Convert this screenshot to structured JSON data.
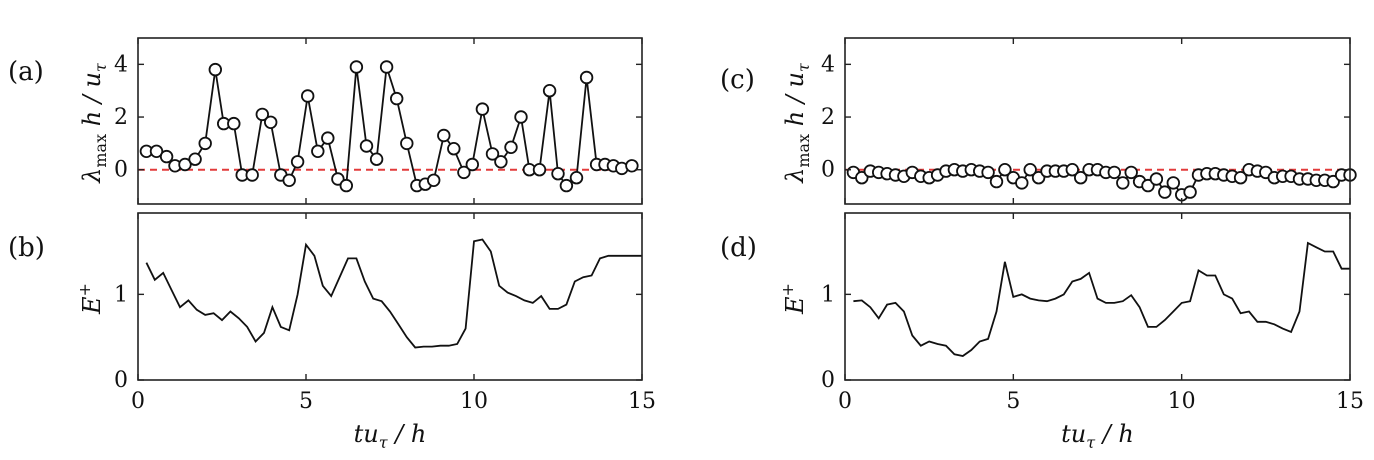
{
  "chart_data": [
    {
      "id": "a",
      "type": "line",
      "panel_label": "(a)",
      "ylabel": "λ_max h / u_τ",
      "xlim": [
        0,
        15
      ],
      "ylim": [
        -1.3,
        5
      ],
      "yticks": [
        "0",
        "2",
        "4"
      ],
      "ytick_values": [
        0,
        2,
        4
      ],
      "xtick_labels": false,
      "zero_line_color": "#e23b3b",
      "series": [
        {
          "name": "lambda_max",
          "markers": "circle",
          "x": [
            0.25,
            0.55,
            0.85,
            1.1,
            1.4,
            1.7,
            2.0,
            2.3,
            2.55,
            2.85,
            3.1,
            3.4,
            3.7,
            3.95,
            4.25,
            4.5,
            4.75,
            5.05,
            5.35,
            5.65,
            5.95,
            6.2,
            6.5,
            6.8,
            7.1,
            7.4,
            7.7,
            8.0,
            8.3,
            8.55,
            8.8,
            9.1,
            9.4,
            9.7,
            9.95,
            10.25,
            10.55,
            10.8,
            11.1,
            11.4,
            11.65,
            11.95,
            12.25,
            12.5,
            12.75,
            13.05,
            13.35,
            13.65,
            13.9,
            14.15,
            14.4,
            14.7
          ],
          "y": [
            0.7,
            0.7,
            0.5,
            0.15,
            0.2,
            0.4,
            1.0,
            3.8,
            1.75,
            1.75,
            -0.2,
            -0.2,
            2.1,
            1.8,
            -0.2,
            -0.4,
            0.3,
            2.8,
            0.7,
            1.2,
            -0.35,
            -0.6,
            3.9,
            0.9,
            0.4,
            3.9,
            2.7,
            1.0,
            -0.6,
            -0.55,
            -0.4,
            1.3,
            0.8,
            -0.1,
            0.2,
            2.3,
            0.6,
            0.3,
            0.85,
            2.0,
            0.0,
            0.0,
            3.0,
            -0.15,
            -0.6,
            -0.3,
            3.5,
            0.2,
            0.2,
            0.15,
            0.05,
            0.15
          ]
        }
      ]
    },
    {
      "id": "b",
      "type": "line",
      "panel_label": "(b)",
      "ylabel": "E^+",
      "xlabel": "tu_τ / h",
      "xlim": [
        0,
        15
      ],
      "ylim": [
        0,
        1.95
      ],
      "yticks": [
        "0",
        "1"
      ],
      "ytick_values": [
        0,
        1
      ],
      "xticks": [
        "0",
        "5",
        "10",
        "15"
      ],
      "xtick_values": [
        0,
        5,
        10,
        15
      ],
      "series": [
        {
          "name": "E+",
          "x": [
            0.25,
            0.5,
            0.75,
            1.0,
            1.25,
            1.5,
            1.75,
            2.0,
            2.25,
            2.5,
            2.75,
            3.0,
            3.25,
            3.5,
            3.75,
            4.0,
            4.25,
            4.5,
            4.75,
            5.0,
            5.25,
            5.5,
            5.75,
            6.0,
            6.25,
            6.5,
            6.75,
            7.0,
            7.25,
            7.5,
            7.75,
            8.0,
            8.25,
            8.5,
            8.75,
            9.0,
            9.25,
            9.5,
            9.75,
            10.0,
            10.25,
            10.5,
            10.75,
            11.0,
            11.25,
            11.5,
            11.75,
            12.0,
            12.25,
            12.5,
            12.75,
            13.0,
            13.25,
            13.5,
            13.75,
            14.0,
            14.25,
            14.5,
            14.75,
            15.0
          ],
          "y": [
            1.37,
            1.17,
            1.25,
            1.05,
            0.85,
            0.93,
            0.82,
            0.76,
            0.78,
            0.7,
            0.8,
            0.72,
            0.62,
            0.45,
            0.55,
            0.85,
            0.62,
            0.58,
            1.0,
            1.58,
            1.45,
            1.1,
            0.98,
            1.2,
            1.42,
            1.42,
            1.15,
            0.95,
            0.92,
            0.8,
            0.65,
            0.5,
            0.38,
            0.39,
            0.39,
            0.4,
            0.4,
            0.42,
            0.6,
            1.62,
            1.64,
            1.5,
            1.1,
            1.02,
            0.98,
            0.93,
            0.9,
            0.98,
            0.83,
            0.83,
            0.88,
            1.15,
            1.2,
            1.22,
            1.42,
            1.45,
            1.45,
            1.45,
            1.45,
            1.45
          ]
        }
      ]
    },
    {
      "id": "c",
      "type": "line",
      "panel_label": "(c)",
      "ylabel": "λ_max h / u_τ",
      "xlim": [
        0,
        15
      ],
      "ylim": [
        -1.3,
        5
      ],
      "yticks": [
        "0",
        "2",
        "4"
      ],
      "ytick_values": [
        0,
        2,
        4
      ],
      "xtick_labels": false,
      "zero_line_color": "#e23b3b",
      "series": [
        {
          "name": "lambda_max",
          "markers": "circle",
          "x": [
            0.25,
            0.5,
            0.75,
            1.0,
            1.25,
            1.5,
            1.75,
            2.0,
            2.25,
            2.5,
            2.75,
            3.0,
            3.25,
            3.5,
            3.75,
            4.0,
            4.25,
            4.5,
            4.75,
            5.0,
            5.25,
            5.5,
            5.75,
            6.0,
            6.25,
            6.5,
            6.75,
            7.0,
            7.25,
            7.5,
            7.75,
            8.0,
            8.25,
            8.5,
            8.75,
            9.0,
            9.25,
            9.5,
            9.75,
            10.0,
            10.25,
            10.5,
            10.75,
            11.0,
            11.25,
            11.5,
            11.75,
            12.0,
            12.25,
            12.5,
            12.75,
            13.0,
            13.25,
            13.5,
            13.75,
            14.0,
            14.25,
            14.5,
            14.75,
            15.0
          ],
          "y": [
            -0.1,
            -0.3,
            -0.05,
            -0.1,
            -0.15,
            -0.2,
            -0.25,
            -0.1,
            -0.25,
            -0.3,
            -0.2,
            -0.05,
            0.0,
            -0.05,
            0.0,
            -0.05,
            -0.1,
            -0.45,
            0.0,
            -0.3,
            -0.5,
            0.0,
            -0.3,
            -0.05,
            -0.05,
            -0.05,
            0.0,
            -0.3,
            0.0,
            0.0,
            -0.1,
            -0.1,
            -0.5,
            -0.1,
            -0.45,
            -0.6,
            -0.35,
            -0.85,
            -0.5,
            -0.95,
            -0.85,
            -0.2,
            -0.15,
            -0.15,
            -0.2,
            -0.25,
            -0.3,
            0.0,
            -0.05,
            -0.1,
            -0.3,
            -0.25,
            -0.25,
            -0.35,
            -0.35,
            -0.4,
            -0.4,
            -0.45,
            -0.2,
            -0.2
          ]
        }
      ]
    },
    {
      "id": "d",
      "type": "line",
      "panel_label": "(d)",
      "ylabel": "E^+",
      "xlabel": "tu_τ / h",
      "xlim": [
        0,
        15
      ],
      "ylim": [
        0,
        1.95
      ],
      "yticks": [
        "0",
        "1"
      ],
      "ytick_values": [
        0,
        1
      ],
      "xticks": [
        "0",
        "5",
        "10",
        "15"
      ],
      "xtick_values": [
        0,
        5,
        10,
        15
      ],
      "series": [
        {
          "name": "E+",
          "x": [
            0.25,
            0.5,
            0.75,
            1.0,
            1.25,
            1.5,
            1.75,
            2.0,
            2.25,
            2.5,
            2.75,
            3.0,
            3.25,
            3.5,
            3.75,
            4.0,
            4.25,
            4.5,
            4.75,
            5.0,
            5.25,
            5.5,
            5.75,
            6.0,
            6.25,
            6.5,
            6.75,
            7.0,
            7.25,
            7.5,
            7.75,
            8.0,
            8.25,
            8.5,
            8.75,
            9.0,
            9.25,
            9.5,
            9.75,
            10.0,
            10.25,
            10.5,
            10.75,
            11.0,
            11.25,
            11.5,
            11.75,
            12.0,
            12.25,
            12.5,
            12.75,
            13.0,
            13.25,
            13.5,
            13.75,
            14.0,
            14.25,
            14.5,
            14.75,
            15.0
          ],
          "y": [
            0.92,
            0.93,
            0.85,
            0.72,
            0.88,
            0.9,
            0.8,
            0.52,
            0.4,
            0.45,
            0.42,
            0.4,
            0.3,
            0.28,
            0.35,
            0.45,
            0.48,
            0.8,
            1.38,
            0.97,
            1.0,
            0.95,
            0.93,
            0.92,
            0.95,
            1.0,
            1.15,
            1.18,
            1.25,
            0.95,
            0.9,
            0.9,
            0.92,
            0.99,
            0.85,
            0.62,
            0.62,
            0.7,
            0.8,
            0.9,
            0.92,
            1.28,
            1.22,
            1.22,
            1.0,
            0.95,
            0.78,
            0.8,
            0.68,
            0.68,
            0.65,
            0.6,
            0.56,
            0.8,
            1.6,
            1.55,
            1.5,
            1.5,
            1.3,
            1.3
          ]
        }
      ]
    }
  ]
}
